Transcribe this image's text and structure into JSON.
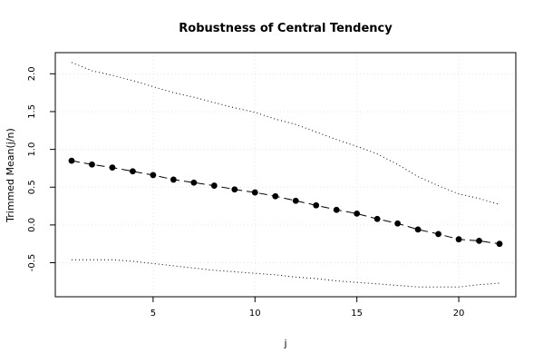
{
  "chart_data": {
    "type": "line",
    "title": "Robustness of Central Tendency",
    "xlabel": "j",
    "ylabel": "Trimmed Mean(j/n)",
    "xlim": [
      0.2,
      22.8
    ],
    "ylim": [
      -0.95,
      2.28
    ],
    "x_ticks": [
      5,
      10,
      15,
      20
    ],
    "y_ticks": [
      -0.5,
      0.0,
      0.5,
      1.0,
      1.5,
      2.0
    ],
    "x_tick_labels": [
      "5",
      "10",
      "15",
      "20"
    ],
    "y_tick_labels": [
      "-0.5",
      "0.0",
      "0.5",
      "1.0",
      "1.5",
      "2.0"
    ],
    "grid": true,
    "x": [
      1,
      2,
      3,
      4,
      5,
      6,
      7,
      8,
      9,
      10,
      11,
      12,
      13,
      14,
      15,
      16,
      17,
      18,
      19,
      20,
      21,
      22
    ],
    "series": [
      {
        "role": "mean",
        "style": "dashed-with-points",
        "color": "#000000",
        "values": [
          0.85,
          0.8,
          0.76,
          0.71,
          0.66,
          0.6,
          0.56,
          0.52,
          0.47,
          0.43,
          0.38,
          0.32,
          0.26,
          0.2,
          0.15,
          0.08,
          0.02,
          -0.06,
          -0.12,
          -0.19,
          -0.21,
          -0.25
        ]
      },
      {
        "role": "upper",
        "style": "dotted",
        "color": "#000000",
        "values": [
          2.15,
          2.04,
          1.98,
          1.91,
          1.83,
          1.75,
          1.69,
          1.62,
          1.55,
          1.49,
          1.4,
          1.33,
          1.23,
          1.13,
          1.04,
          0.94,
          0.8,
          0.64,
          0.52,
          0.41,
          0.35,
          0.27
        ]
      },
      {
        "role": "lower",
        "style": "dotted",
        "color": "#000000",
        "values": [
          -0.46,
          -0.46,
          -0.46,
          -0.48,
          -0.51,
          -0.54,
          -0.57,
          -0.6,
          -0.62,
          -0.64,
          -0.66,
          -0.69,
          -0.71,
          -0.74,
          -0.76,
          -0.78,
          -0.8,
          -0.82,
          -0.82,
          -0.82,
          -0.79,
          -0.77
        ]
      }
    ]
  }
}
